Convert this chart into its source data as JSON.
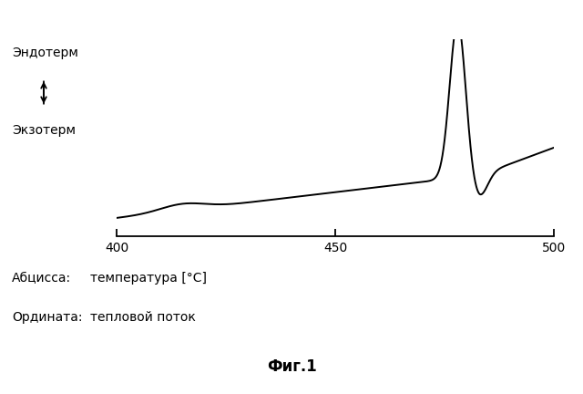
{
  "x_min": 400,
  "x_max": 500,
  "x_ticks": [
    400,
    450,
    500
  ],
  "background_color": "#ffffff",
  "line_color": "#000000",
  "line_width": 1.4,
  "endotherm_label": "Эндотерм",
  "exotherm_label": "Экзотерм",
  "abscissa_label": "Абцисса:",
  "abscissa_value": "температура [°C]",
  "ordinate_label": "Ордината:",
  "ordinate_value": "тепловой поток",
  "fig_label": "Фиг.1"
}
